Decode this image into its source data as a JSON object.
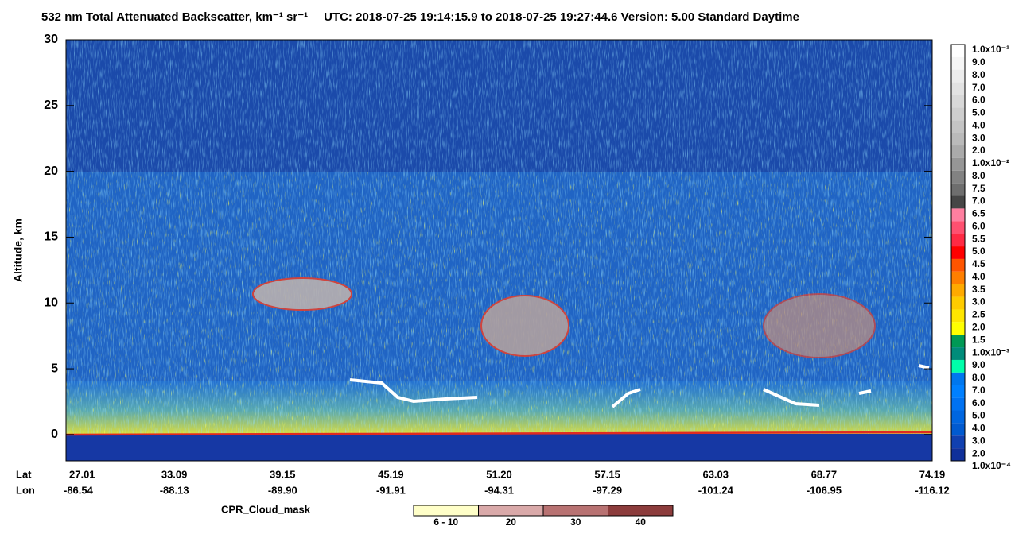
{
  "chart_data": {
    "type": "heatmap",
    "title": "532 nm Total Attenuated Backscatter, km⁻¹ sr⁻¹",
    "subtitle": "UTC:  2018-07-25 19:14:15.9  to  2018-07-25 19:27:44.6     Version: 5.00  Standard  Daytime",
    "y_label": "Altitude, km",
    "ylim": [
      -2,
      30
    ],
    "yticks": [
      0,
      5,
      10,
      15,
      20,
      25,
      30
    ],
    "x_row_labels": [
      "Lat",
      "Lon"
    ],
    "lat": [
      "27.01",
      "33.09",
      "39.15",
      "45.19",
      "51.20",
      "57.15",
      "63.03",
      "68.77",
      "74.19"
    ],
    "lon": [
      "-86.54",
      "-88.13",
      "-89.90",
      "-91.91",
      "-94.31",
      "-97.29",
      "-101.24",
      "-106.95",
      "-116.12"
    ],
    "colorbar": {
      "labels": [
        "1.0x10⁻¹",
        "9.0",
        "8.0",
        "7.0",
        "6.0",
        "5.0",
        "4.0",
        "3.0",
        "2.0",
        "1.0x10⁻²",
        "8.0",
        "7.5",
        "7.0",
        "6.5",
        "6.0",
        "5.5",
        "5.0",
        "4.5",
        "4.0",
        "3.5",
        "3.0",
        "2.5",
        "2.0",
        "1.5",
        "1.0x10⁻³",
        "9.0",
        "8.0",
        "7.0",
        "6.0",
        "5.0",
        "4.0",
        "3.0",
        "2.0",
        "1.0x10⁻⁴"
      ],
      "colors": [
        "#ffffff",
        "#f6f6f6",
        "#ececec",
        "#e2e2e2",
        "#d8d8d8",
        "#cecece",
        "#c4c4c4",
        "#bababa",
        "#aaaaaa",
        "#969696",
        "#828282",
        "#6e6e6e",
        "#464646",
        "#ff7fa0",
        "#ff5070",
        "#ff2a44",
        "#ff0000",
        "#ff5500",
        "#ff7f00",
        "#ffaa00",
        "#ffcc00",
        "#ffe600",
        "#ffff00",
        "#009955",
        "#008c7a",
        "#00ffaa",
        "#0077ee",
        "#0080ff",
        "#0072f2",
        "#0066e0",
        "#005ad0",
        "#1040b0",
        "#10309a"
      ]
    },
    "cloud_mask": {
      "title": "CPR_Cloud_mask",
      "labels": [
        "6 - 10",
        "20",
        "30",
        "40"
      ],
      "colors": [
        "#ffffc8",
        "#d9a9a9",
        "#b87272",
        "#8c3c3c"
      ]
    }
  }
}
